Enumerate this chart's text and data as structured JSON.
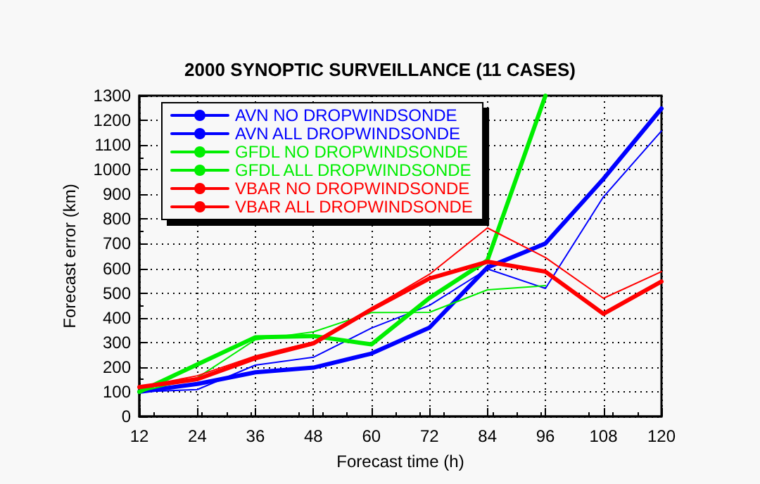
{
  "chart_data": {
    "type": "line",
    "title": "2000 SYNOPTIC SURVEILLANCE (11 CASES)",
    "xlabel": "Forecast time (h)",
    "ylabel": "Forecast error (km)",
    "x": [
      12,
      24,
      36,
      48,
      60,
      72,
      84,
      96,
      108,
      120
    ],
    "series": [
      {
        "name": "AVN NO DROPWINDSONDE",
        "color": "#0000ff",
        "values": [
          100,
          109,
          208,
          240,
          358,
          450,
          598,
          519,
          890,
          1157
        ]
      },
      {
        "name": "AVN ALL DROPWINDSONDE",
        "color": "#0000ff",
        "values": [
          100,
          132,
          179,
          198,
          255,
          360,
          604,
          701,
          963,
          1248
        ]
      },
      {
        "name": "GFDL NO DROPWINDSONDE",
        "color": "#00ee00",
        "values": [
          100,
          157,
          311,
          343,
          421,
          422,
          513,
          530,
          null,
          null
        ]
      },
      {
        "name": "GFDL ALL DROPWINDSONDE",
        "color": "#00ee00",
        "values": [
          100,
          211,
          321,
          326,
          292,
          480,
          633,
          1300,
          null,
          null
        ]
      },
      {
        "name": "VBAR NO DROPWINDSONDE",
        "color": "#ff0000",
        "values": [
          119,
          165,
          245,
          302,
          438,
          576,
          764,
          644,
          479,
          587
        ]
      },
      {
        "name": "VBAR ALL DROPWINDSONDE",
        "color": "#ff0000",
        "values": [
          119,
          151,
          236,
          296,
          434,
          559,
          627,
          587,
          416,
          547
        ]
      }
    ],
    "xlim": [
      12,
      120
    ],
    "xticks": [
      12,
      24,
      36,
      48,
      60,
      72,
      84,
      96,
      108,
      120
    ],
    "ylim": [
      0,
      1300
    ],
    "yticks": [
      0,
      100,
      200,
      300,
      400,
      500,
      600,
      700,
      800,
      900,
      1000,
      1100,
      1200,
      1300
    ],
    "grid": true,
    "legend": "top left",
    "marker": "none",
    "line_style": "solid"
  }
}
